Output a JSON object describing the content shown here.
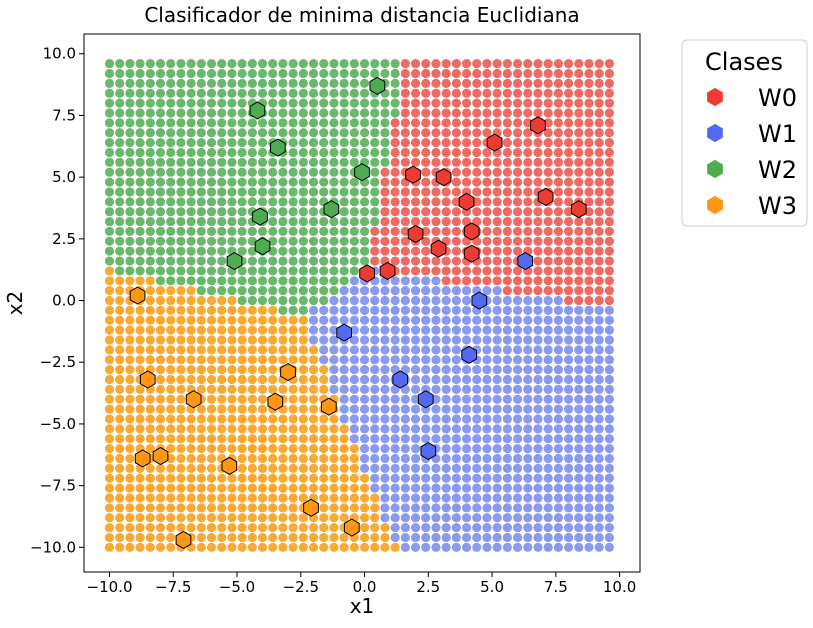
{
  "chart_data": {
    "type": "scatter",
    "title": "Clasificador de minima distancia Euclidiana",
    "xlabel": "x1",
    "ylabel": "x2",
    "xlim": [
      -11.0,
      10.8
    ],
    "ylim": [
      -11.0,
      10.8
    ],
    "xticks": [
      -10.0,
      -7.5,
      -5.0,
      -2.5,
      0.0,
      2.5,
      5.0,
      7.5,
      10.0
    ],
    "xtick_labels": [
      "−10.0",
      "−7.5",
      "−5.0",
      "−2.5",
      "0.0",
      "2.5",
      "5.0",
      "7.5",
      "10.0"
    ],
    "yticks": [
      -10.0,
      -7.5,
      -5.0,
      -2.5,
      0.0,
      2.5,
      5.0,
      7.5,
      10.0
    ],
    "ytick_labels": [
      "−10.0",
      "−7.5",
      "−5.0",
      "−2.5",
      "0.0",
      "2.5",
      "5.0",
      "7.5",
      "10.0"
    ],
    "grid": false,
    "legend": {
      "title": "Clases",
      "placement": "outside-top-right",
      "entries": [
        "W0",
        "W1",
        "W2",
        "W3"
      ]
    },
    "region_grid": {
      "description": "background decision-region grid",
      "x_start": -10.0,
      "x_end": 9.8,
      "step": 0.4,
      "y_start": -10.0,
      "y_end": 9.8
    },
    "series": [
      {
        "name": "W0",
        "region_color": "#ee6a62",
        "marker_color": "#ee3b31",
        "points": [
          [
            5.1,
            6.4
          ],
          [
            6.8,
            7.1
          ],
          [
            3.1,
            5.0
          ],
          [
            1.9,
            5.1
          ],
          [
            4.0,
            4.0
          ],
          [
            7.1,
            4.2
          ],
          [
            8.4,
            3.7
          ],
          [
            2.0,
            2.7
          ],
          [
            4.2,
            2.8
          ],
          [
            2.9,
            2.1
          ],
          [
            4.2,
            1.9
          ],
          [
            0.1,
            1.1
          ],
          [
            0.9,
            1.2
          ]
        ]
      },
      {
        "name": "W1",
        "region_color": "#8a9af0",
        "marker_color": "#5369ef",
        "points": [
          [
            6.3,
            1.6
          ],
          [
            4.5,
            0.0
          ],
          [
            -0.8,
            -1.3
          ],
          [
            4.1,
            -2.2
          ],
          [
            1.4,
            -3.2
          ],
          [
            2.4,
            -4.0
          ],
          [
            2.5,
            -6.1
          ]
        ]
      },
      {
        "name": "W2",
        "region_color": "#6ab86b",
        "marker_color": "#4cac4f",
        "points": [
          [
            0.5,
            8.7
          ],
          [
            -4.2,
            7.7
          ],
          [
            -3.4,
            6.2
          ],
          [
            -0.1,
            5.2
          ],
          [
            -1.3,
            3.7
          ],
          [
            -4.1,
            3.4
          ],
          [
            -4.0,
            2.2
          ],
          [
            -5.1,
            1.6
          ]
        ]
      },
      {
        "name": "W3",
        "region_color": "#f8aa35",
        "marker_color": "#fd9612",
        "points": [
          [
            -8.9,
            0.2
          ],
          [
            -8.5,
            -3.2
          ],
          [
            -3.0,
            -2.9
          ],
          [
            -6.7,
            -4.0
          ],
          [
            -3.5,
            -4.1
          ],
          [
            -1.4,
            -4.3
          ],
          [
            -8.7,
            -6.4
          ],
          [
            -8.0,
            -6.3
          ],
          [
            -5.3,
            -6.7
          ],
          [
            -2.1,
            -8.4
          ],
          [
            -0.5,
            -9.2
          ],
          [
            -7.1,
            -9.7
          ]
        ]
      }
    ]
  }
}
